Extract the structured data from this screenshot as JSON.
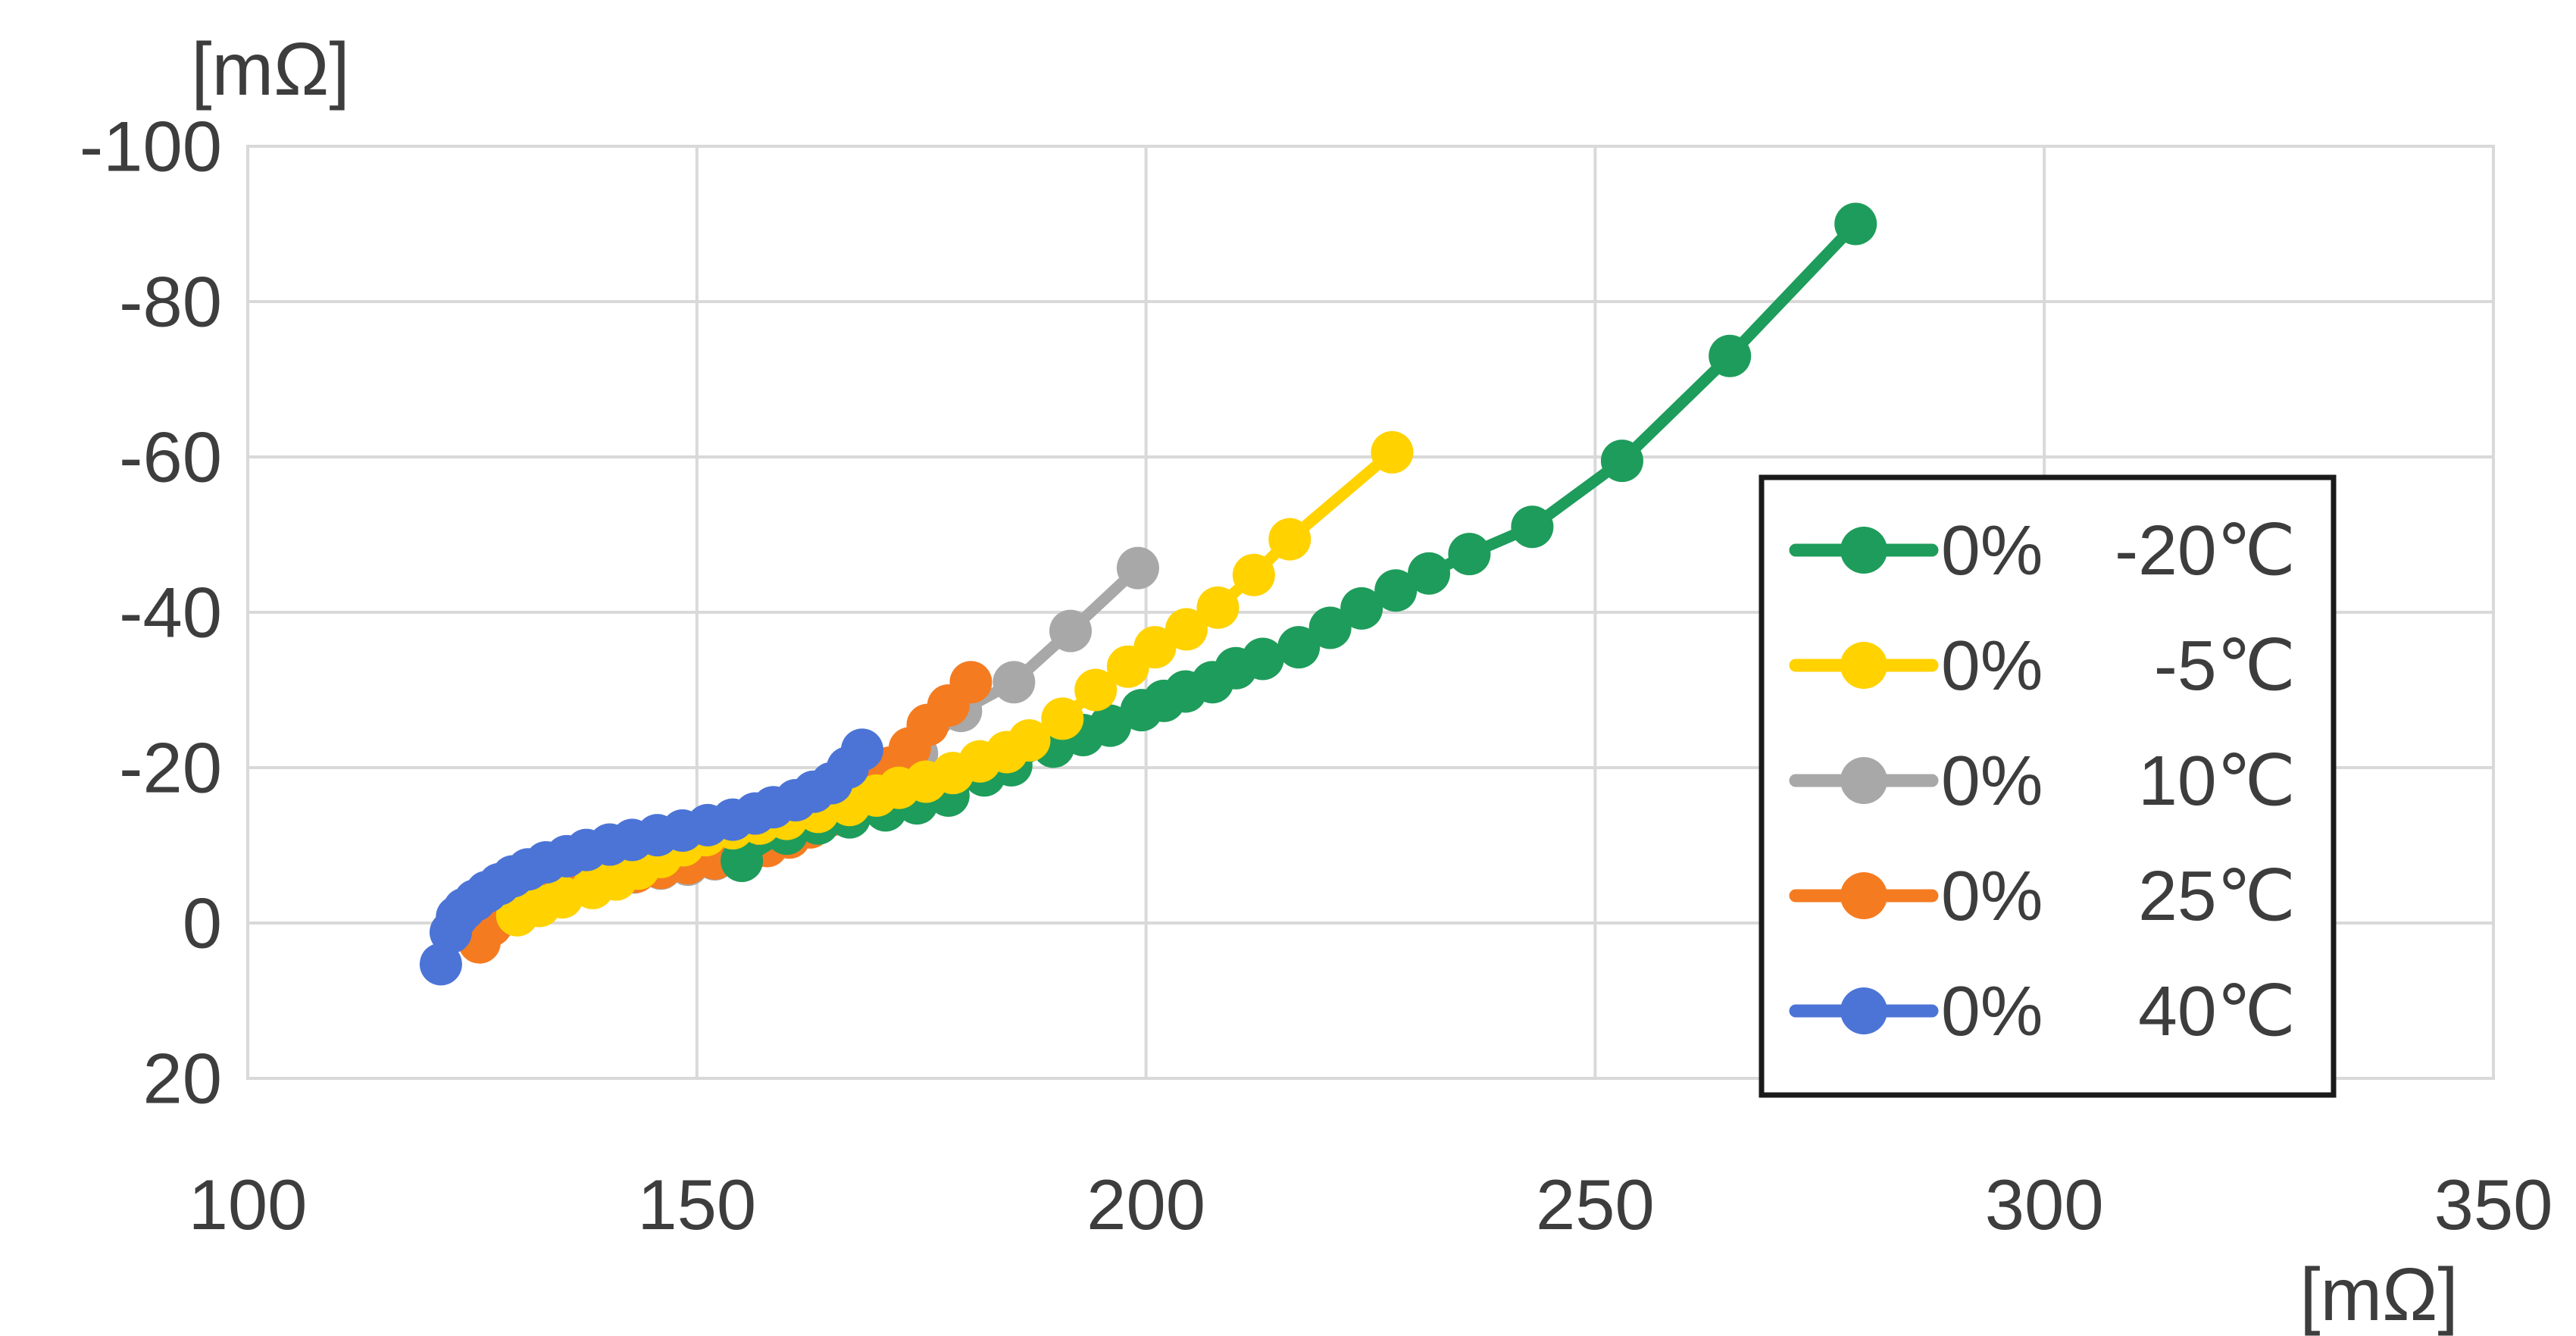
{
  "chart_data": {
    "type": "scatter",
    "subtype": "nyquist-impedance-plot",
    "title": "",
    "xlabel": "[mΩ]",
    "ylabel": "[mΩ]",
    "x_axis": {
      "unit_label": "[mΩ]",
      "min": 100,
      "max": 350,
      "tick_values": [
        100,
        150,
        200,
        250,
        300,
        350
      ],
      "tick_labels": [
        "100",
        "150",
        "200",
        "250",
        "300",
        "350"
      ]
    },
    "y_axis": {
      "unit_label": "[mΩ]",
      "min": -100,
      "max": 20,
      "inverted": true,
      "tick_values": [
        -100,
        -80,
        -60,
        -40,
        -20,
        0,
        20
      ],
      "tick_labels": [
        "-100",
        "-80",
        "-60",
        "-40",
        "-20",
        "0",
        "20"
      ]
    },
    "grid": true,
    "legend": {
      "position": "right-middle",
      "border": true
    },
    "series": [
      {
        "name": "0% -20℃",
        "soc_label": "0%",
        "temp_label": "-20℃",
        "color": "#1E9C5B",
        "points": [
          [
            155,
            -8
          ],
          [
            160,
            -11.5
          ],
          [
            163.5,
            -12.8
          ],
          [
            167,
            -13.6
          ],
          [
            171,
            -14.5
          ],
          [
            174.5,
            -15.4
          ],
          [
            178,
            -16.4
          ],
          [
            182,
            -19
          ],
          [
            185,
            -20.3
          ],
          [
            189.7,
            -22.7
          ],
          [
            193,
            -24.2
          ],
          [
            196,
            -25.4
          ],
          [
            199.5,
            -27.4
          ],
          [
            202,
            -28.6
          ],
          [
            204.4,
            -29.8
          ],
          [
            207.4,
            -31
          ],
          [
            210,
            -32.8
          ],
          [
            213,
            -34
          ],
          [
            217,
            -35.5
          ],
          [
            220.5,
            -38
          ],
          [
            224,
            -40.5
          ],
          [
            227.8,
            -42.8
          ],
          [
            231.5,
            -45
          ],
          [
            236,
            -47.5
          ],
          [
            243,
            -51
          ],
          [
            253,
            -59.5
          ],
          [
            265,
            -73
          ],
          [
            279,
            -90
          ]
        ]
      },
      {
        "name": "0%  -5℃",
        "soc_label": "0%",
        "temp_label": "-5℃",
        "color": "#FFD200",
        "points": [
          [
            130,
            -1
          ],
          [
            132.5,
            -2.2
          ],
          [
            135,
            -3.3
          ],
          [
            138.4,
            -4.5
          ],
          [
            141,
            -5.6
          ],
          [
            143.5,
            -7
          ],
          [
            146,
            -8.5
          ],
          [
            148.5,
            -10
          ],
          [
            151,
            -11.3
          ],
          [
            154,
            -12.2
          ],
          [
            157,
            -12.8
          ],
          [
            160,
            -13.4
          ],
          [
            163.5,
            -14.3
          ],
          [
            167,
            -15.2
          ],
          [
            170,
            -16.4
          ],
          [
            172.5,
            -17.4
          ],
          [
            175.5,
            -18.2
          ],
          [
            178.5,
            -19.3
          ],
          [
            181.5,
            -20.8
          ],
          [
            184.5,
            -22
          ],
          [
            187,
            -23.5
          ],
          [
            190.7,
            -26.3
          ],
          [
            194.4,
            -30
          ],
          [
            198,
            -33
          ],
          [
            201,
            -35.5
          ],
          [
            204.5,
            -37.8
          ],
          [
            208,
            -40.6
          ],
          [
            212,
            -44.8
          ],
          [
            216,
            -49.4
          ],
          [
            227.4,
            -60.6
          ]
        ]
      },
      {
        "name": "0%  10℃",
        "soc_label": "0%",
        "temp_label": "10℃",
        "color": "#A8A8A8",
        "points": [
          [
            127.5,
            -1.1
          ],
          [
            129,
            -2.1
          ],
          [
            130.7,
            -3
          ],
          [
            132.7,
            -3.9
          ],
          [
            135,
            -4.7
          ],
          [
            137.5,
            -5.3
          ],
          [
            140.2,
            -5.9
          ],
          [
            143,
            -6.5
          ],
          [
            146,
            -7
          ],
          [
            149,
            -7.5
          ],
          [
            152,
            -8.2
          ],
          [
            155,
            -9
          ],
          [
            157.7,
            -10
          ],
          [
            160.2,
            -11.2
          ],
          [
            162.6,
            -12.6
          ],
          [
            164.9,
            -14.2
          ],
          [
            167.1,
            -15.9
          ],
          [
            169.3,
            -17.8
          ],
          [
            171.4,
            -19.8
          ],
          [
            174.5,
            -21.8
          ],
          [
            179.4,
            -27.3
          ],
          [
            185.3,
            -31
          ],
          [
            191.6,
            -37.6
          ],
          [
            199.1,
            -45.7
          ]
        ]
      },
      {
        "name": "0%  25℃",
        "soc_label": "0%",
        "temp_label": "25℃",
        "color": "#F57B20",
        "points": [
          [
            125.8,
            2.5
          ],
          [
            127.1,
            0.3
          ],
          [
            128.1,
            -0.8
          ],
          [
            129.5,
            -1.8
          ],
          [
            131.2,
            -2.7
          ],
          [
            133.2,
            -3.6
          ],
          [
            135.5,
            -4.5
          ],
          [
            138,
            -5.3
          ],
          [
            140.5,
            -6
          ],
          [
            143.2,
            -6.6
          ],
          [
            146,
            -7.1
          ],
          [
            149,
            -7.7
          ],
          [
            152,
            -8.3
          ],
          [
            155,
            -9
          ],
          [
            157.8,
            -9.9
          ],
          [
            160.3,
            -11
          ],
          [
            162.6,
            -12.3
          ],
          [
            164.8,
            -13.8
          ],
          [
            167.3,
            -16
          ],
          [
            169.5,
            -18
          ],
          [
            171.5,
            -20
          ],
          [
            173.7,
            -22.5
          ],
          [
            175.7,
            -25.5
          ],
          [
            178,
            -28
          ],
          [
            180.5,
            -31
          ]
        ]
      },
      {
        "name": "0%  40℃",
        "soc_label": "0%",
        "temp_label": "40℃",
        "color": "#4C74D6",
        "points": [
          [
            121.5,
            5.3
          ],
          [
            122.6,
            1.2
          ],
          [
            123.3,
            -0.8
          ],
          [
            124.1,
            -1.8
          ],
          [
            125.3,
            -2.9
          ],
          [
            126.6,
            -4
          ],
          [
            128,
            -5
          ],
          [
            129.5,
            -6
          ],
          [
            131.2,
            -6.9
          ],
          [
            133.2,
            -7.8
          ],
          [
            135.5,
            -8.6
          ],
          [
            137.7,
            -9.4
          ],
          [
            140.3,
            -10.1
          ],
          [
            142.8,
            -10.7
          ],
          [
            145.6,
            -11.3
          ],
          [
            148.4,
            -11.9
          ],
          [
            151.2,
            -12.6
          ],
          [
            154,
            -13.3
          ],
          [
            156.5,
            -14.1
          ],
          [
            158.5,
            -14.9
          ],
          [
            161,
            -15.8
          ],
          [
            163,
            -16.9
          ],
          [
            165,
            -18
          ],
          [
            166.8,
            -20
          ],
          [
            168.4,
            -22.3
          ]
        ]
      }
    ]
  },
  "colors": {
    "background": "#ffffff",
    "gridline": "#D9D9D9",
    "axis_text": "#3D3D3D",
    "legend_border": "#1A1A1A",
    "legend_text": "#3D3D3D"
  }
}
